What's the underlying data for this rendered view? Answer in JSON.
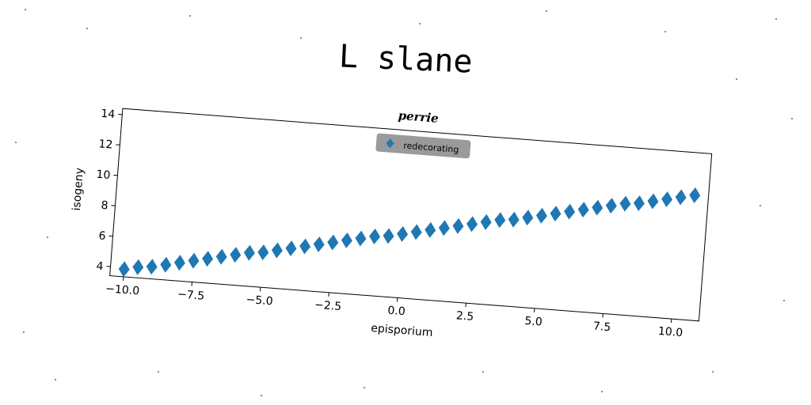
{
  "suptitle": "L slane",
  "chart_data": {
    "type": "scatter",
    "title": "perrie",
    "xlabel": "episporium",
    "ylabel": "isogeny",
    "xlim": [
      -10.5,
      11
    ],
    "ylim": [
      3.4,
      14.4
    ],
    "xticks": [
      "−10.0",
      "−7.5",
      "−5.0",
      "−2.5",
      "0.0",
      "2.5",
      "5.0",
      "7.5",
      "10.0"
    ],
    "xtick_values": [
      -10,
      -7.5,
      -5,
      -2.5,
      0,
      2.5,
      5,
      7.5,
      10
    ],
    "yticks": [
      "4",
      "6",
      "8",
      "10",
      "12",
      "14"
    ],
    "ytick_values": [
      4,
      6,
      8,
      10,
      12,
      14
    ],
    "grid": false,
    "legend_position": "top-center",
    "marker": "diamond",
    "color": "#1f77b4",
    "series": [
      {
        "name": "redecorating",
        "x": [
          -10.0,
          -9.5,
          -9.0,
          -8.5,
          -8.0,
          -7.5,
          -7.0,
          -6.5,
          -6.0,
          -5.5,
          -5.0,
          -4.5,
          -4.0,
          -3.5,
          -3.0,
          -2.5,
          -2.0,
          -1.5,
          -1.0,
          -0.5,
          0.0,
          0.5,
          1.0,
          1.5,
          2.0,
          2.5,
          3.0,
          3.5,
          4.0,
          4.5,
          5.0,
          5.5,
          6.0,
          6.5,
          7.0,
          7.5,
          8.0,
          8.5,
          9.0,
          9.5,
          10.0,
          10.5
        ],
        "y": [
          3.9,
          4.1,
          4.2,
          4.4,
          4.6,
          4.8,
          5.0,
          5.2,
          5.4,
          5.6,
          5.7,
          5.9,
          6.1,
          6.3,
          6.5,
          6.7,
          6.9,
          7.1,
          7.3,
          7.4,
          7.6,
          7.8,
          8.0,
          8.2,
          8.4,
          8.6,
          8.8,
          9.0,
          9.1,
          9.3,
          9.5,
          9.7,
          9.9,
          10.1,
          10.3,
          10.5,
          10.7,
          10.8,
          11.0,
          11.2,
          11.4,
          11.6
        ]
      }
    ]
  }
}
